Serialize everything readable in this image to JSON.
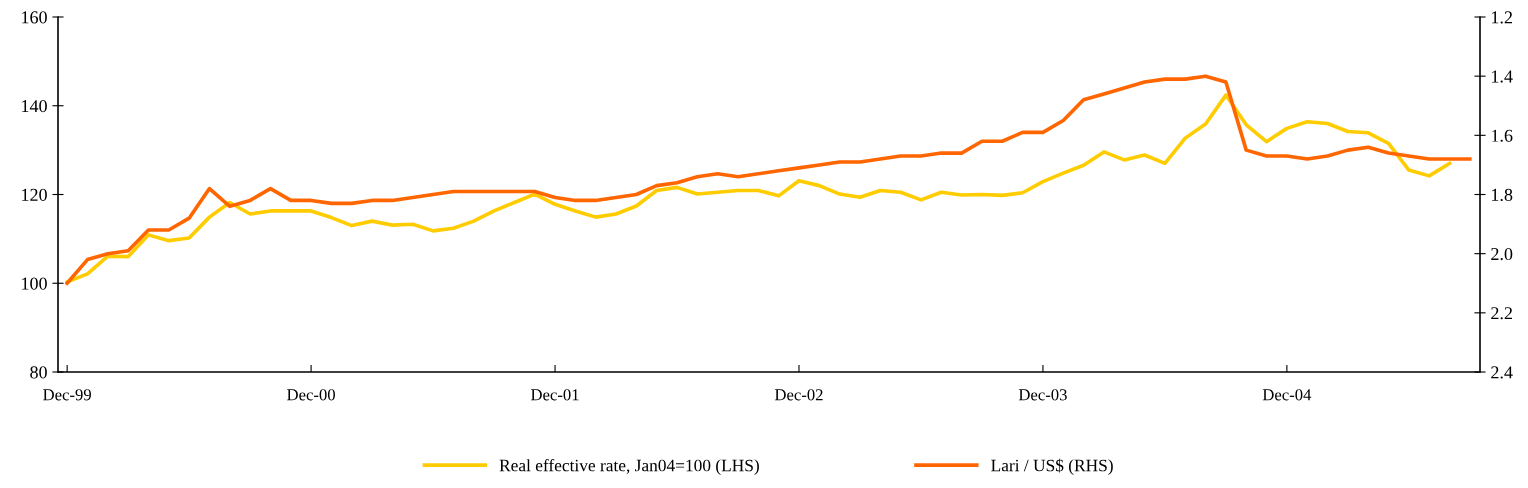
{
  "chart_data": {
    "type": "line",
    "categories": [
      "Dec-99",
      null,
      null,
      null,
      null,
      null,
      null,
      null,
      null,
      null,
      null,
      null,
      "Dec-00",
      null,
      null,
      null,
      null,
      null,
      null,
      null,
      null,
      null,
      null,
      null,
      "Dec-01",
      null,
      null,
      null,
      null,
      null,
      null,
      null,
      null,
      null,
      null,
      null,
      "Dec-02",
      null,
      null,
      null,
      null,
      null,
      null,
      null,
      null,
      null,
      null,
      null,
      "Dec-03",
      null,
      null,
      null,
      null,
      null,
      null,
      null,
      null,
      null,
      null,
      null,
      "Dec-04",
      null,
      null,
      null,
      null,
      null,
      null,
      null,
      null,
      null
    ],
    "series": [
      {
        "name": "Real effective rate, Jan04=100 (LHS)",
        "color": "#ffcc00",
        "values": [
          100.3,
          102.1,
          106.1,
          106.0,
          110.9,
          109.6,
          110.2,
          114.9,
          118.2,
          115.6,
          116.3,
          116.3,
          116.3,
          114.8,
          113.0,
          114.0,
          113.1,
          113.3,
          111.8,
          112.4,
          114.0,
          116.3,
          118.2,
          120.1,
          117.8,
          116.3,
          114.9,
          115.6,
          117.4,
          120.9,
          121.6,
          120.1,
          120.5,
          120.9,
          120.9,
          119.7,
          123.1,
          122.0,
          120.1,
          119.4,
          120.9,
          120.5,
          118.8,
          120.5,
          119.9,
          120.0,
          119.8,
          120.4,
          122.9,
          124.8,
          126.6,
          129.6,
          127.8,
          128.9,
          127.0,
          132.7,
          135.9,
          142.4,
          135.7,
          131.9,
          134.9,
          136.4,
          136.0,
          134.2,
          133.9,
          131.5,
          125.5,
          124.2,
          127.0,
          null
        ]
      },
      {
        "name": "Lari / US$ (RHS)",
        "color": "#ff6600",
        "axis": "y2",
        "values": [
          2.1,
          2.02,
          2.0,
          1.99,
          1.92,
          1.92,
          1.88,
          1.78,
          1.84,
          1.82,
          1.78,
          1.82,
          1.82,
          1.83,
          1.83,
          1.82,
          1.82,
          1.81,
          1.8,
          1.79,
          1.79,
          1.79,
          1.79,
          1.79,
          1.81,
          1.82,
          1.82,
          1.81,
          1.8,
          1.77,
          1.76,
          1.74,
          1.73,
          1.74,
          1.73,
          1.72,
          1.71,
          1.7,
          1.69,
          1.69,
          1.68,
          1.67,
          1.67,
          1.66,
          1.66,
          1.62,
          1.62,
          1.59,
          1.59,
          1.55,
          1.48,
          1.46,
          1.44,
          1.42,
          1.41,
          1.41,
          1.4,
          1.42,
          1.65,
          1.67,
          1.67,
          1.68,
          1.67,
          1.65,
          1.64,
          1.66,
          1.67,
          1.68,
          1.68,
          1.68
        ]
      }
    ],
    "ylim": [
      80,
      160
    ],
    "yticks": [
      80,
      100,
      120,
      140,
      160
    ],
    "y2lim": [
      2.4,
      1.2
    ],
    "y2ticks": [
      1.2,
      1.4,
      1.6,
      1.8,
      {
        "value": 2.0,
        "label": "2.0"
      },
      2.2,
      2.4
    ],
    "legend": "bottom",
    "grid": false,
    "marker": "none",
    "line_style": "solid"
  }
}
